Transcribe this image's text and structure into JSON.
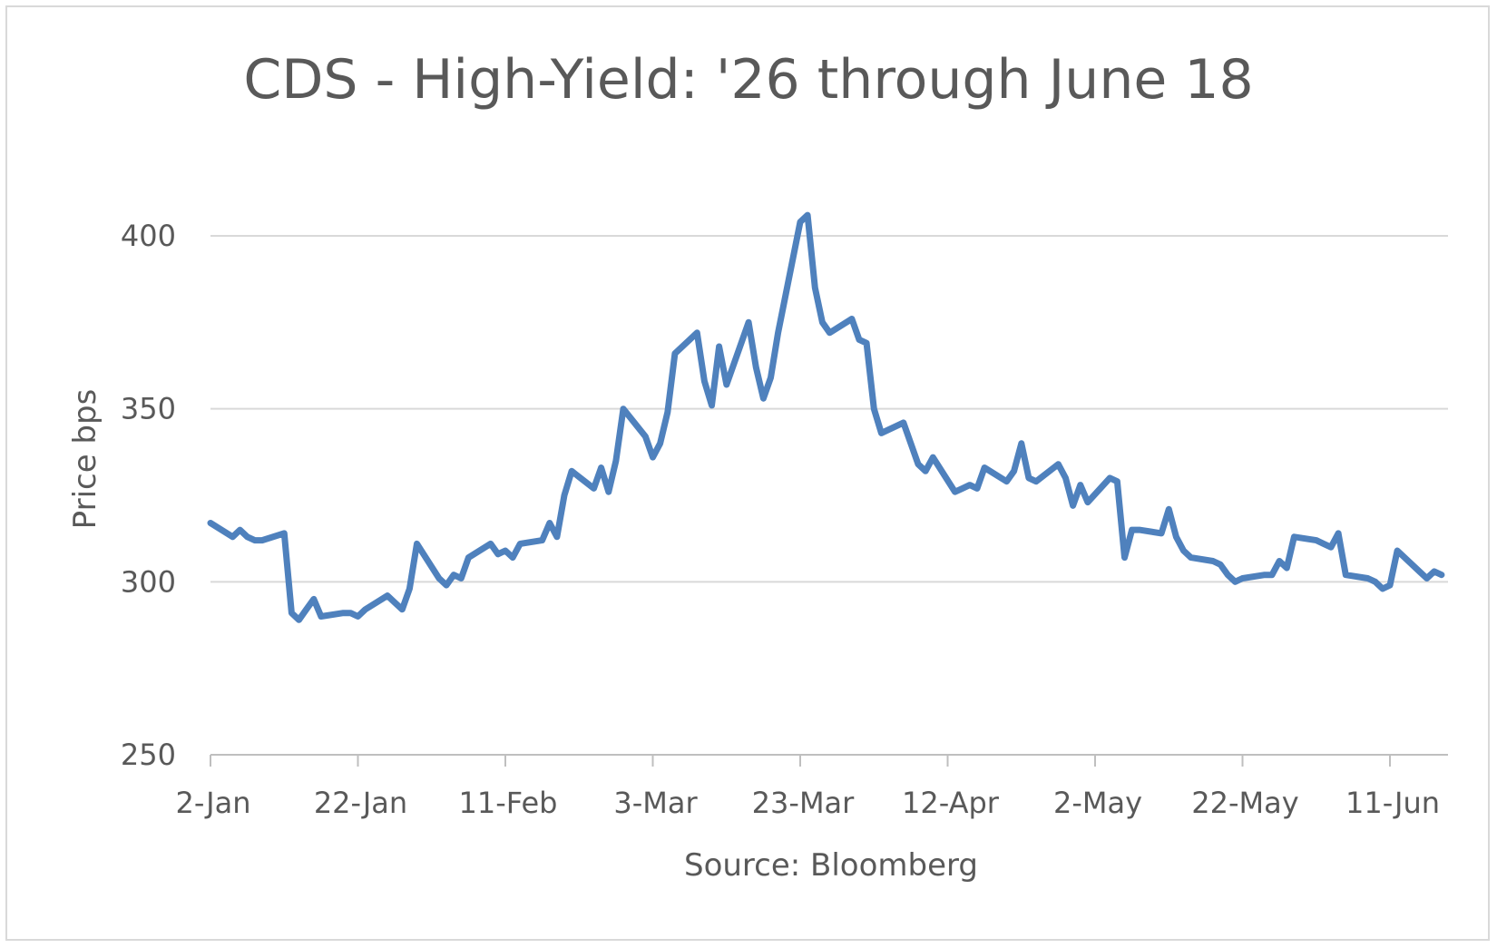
{
  "chart_data": {
    "type": "line",
    "title": "CDS - High-Yield: '26 through June 18",
    "xlabel": "Source: Bloomberg",
    "ylabel": "Price bps",
    "ylim": [
      250,
      400
    ],
    "yticks": [
      "250",
      "300",
      "350",
      "400"
    ],
    "xticks": [
      "2-Jan",
      "22-Jan",
      "11-Feb",
      "3-Mar",
      "23-Mar",
      "12-Apr",
      "2-May",
      "22-May",
      "11-Jun"
    ],
    "grid": true,
    "legend": "none",
    "x_start": "2-Jan",
    "x_end": "18-Jun",
    "line_color": "#4f81bd",
    "series": [
      {
        "x": [
          "2-Jan",
          "5-Jan",
          "6-Jan",
          "7-Jan",
          "8-Jan",
          "9-Jan",
          "12-Jan",
          "13-Jan",
          "14-Jan",
          "15-Jan",
          "16-Jan",
          "17-Jan",
          "20-Jan",
          "21-Jan",
          "22-Jan",
          "23-Jan",
          "26-Jan",
          "27-Jan",
          "28-Jan",
          "29-Jan",
          "30-Jan",
          "2-Feb",
          "3-Feb",
          "4-Feb",
          "5-Feb",
          "6-Feb",
          "9-Feb",
          "10-Feb",
          "11-Feb",
          "12-Feb",
          "13-Feb",
          "16-Feb",
          "17-Feb",
          "18-Feb",
          "19-Feb",
          "20-Feb",
          "23-Feb",
          "24-Feb",
          "25-Feb",
          "26-Feb",
          "27-Feb",
          "2-Mar",
          "3-Mar",
          "4-Mar",
          "5-Mar",
          "6-Mar",
          "9-Mar",
          "10-Mar",
          "11-Mar",
          "12-Mar",
          "13-Mar",
          "16-Mar",
          "17-Mar",
          "18-Mar",
          "19-Mar",
          "20-Mar",
          "23-Mar",
          "24-Mar",
          "25-Mar",
          "26-Mar",
          "27-Mar",
          "30-Mar",
          "31-Mar",
          "1-Apr",
          "2-Apr",
          "3-Apr",
          "6-Apr",
          "7-Apr",
          "8-Apr",
          "9-Apr",
          "10-Apr",
          "13-Apr",
          "14-Apr",
          "15-Apr",
          "16-Apr",
          "17-Apr",
          "20-Apr",
          "21-Apr",
          "22-Apr",
          "23-Apr",
          "24-Apr",
          "27-Apr",
          "28-Apr",
          "29-Apr",
          "30-Apr",
          "1-May",
          "4-May",
          "5-May",
          "6-May",
          "7-May",
          "8-May",
          "11-May",
          "12-May",
          "13-May",
          "14-May",
          "15-May",
          "18-May",
          "19-May",
          "20-May",
          "21-May",
          "22-May",
          "25-May",
          "26-May",
          "27-May",
          "28-May",
          "29-May",
          "1-Jun",
          "2-Jun",
          "3-Jun",
          "4-Jun",
          "5-Jun",
          "8-Jun",
          "9-Jun",
          "10-Jun",
          "11-Jun",
          "12-Jun",
          "15-Jun",
          "16-Jun",
          "17-Jun",
          "18-Jun"
        ],
        "values": [
          317,
          313,
          315,
          313,
          312,
          312,
          314,
          291,
          289,
          292,
          295,
          290,
          291,
          291,
          290,
          292,
          296,
          294,
          292,
          298,
          311,
          301,
          299,
          302,
          301,
          307,
          311,
          308,
          309,
          307,
          311,
          312,
          317,
          313,
          325,
          332,
          327,
          333,
          326,
          335,
          350,
          342,
          336,
          340,
          349,
          366,
          372,
          358,
          351,
          368,
          357,
          375,
          362,
          353,
          359,
          372,
          404,
          406,
          385,
          375,
          372,
          376,
          370,
          369,
          350,
          343,
          346,
          340,
          334,
          332,
          336,
          326,
          327,
          328,
          327,
          333,
          329,
          332,
          340,
          330,
          329,
          334,
          330,
          322,
          328,
          323,
          330,
          329,
          307,
          315,
          315,
          314,
          321,
          313,
          309,
          307,
          306,
          305,
          302,
          300,
          301,
          302,
          302,
          306,
          304,
          313,
          312,
          311,
          310,
          314,
          302,
          301,
          300,
          298,
          299,
          309,
          303,
          301,
          303,
          302
        ]
      }
    ]
  }
}
